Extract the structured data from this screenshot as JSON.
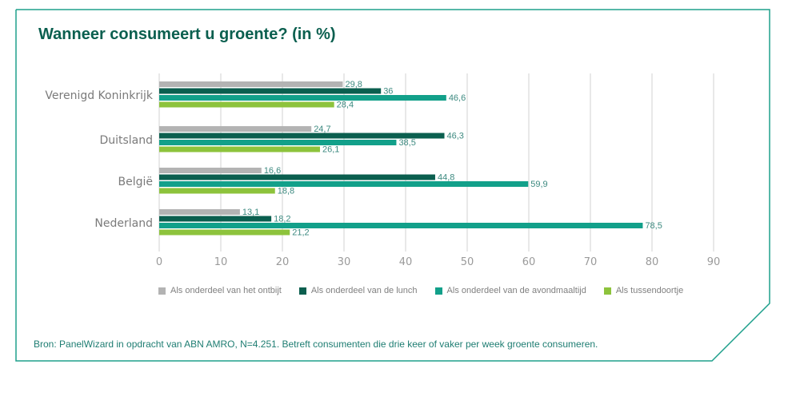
{
  "colors": {
    "border": "#1fa08c",
    "title": "#0b5f4f",
    "ontbijt": "#b3b3b3",
    "lunch": "#0b5f4f",
    "avondmaaltijd": "#12a08a",
    "tussendoortje": "#8dc33c"
  },
  "source_text": "Bron: PanelWizard in opdracht van ABN AMRO, N=4.251. Betreft consumenten die drie keer of vaker per week groente consumeren.",
  "chart_data": {
    "type": "bar",
    "orientation": "horizontal",
    "title": "Wanneer consumeert u groente? (in %)",
    "categories": [
      "Verenigd Koninkrijk",
      "Duitsland",
      "België",
      "Nederland"
    ],
    "series": [
      {
        "name": "Als onderdeel van het ontbijt",
        "values": [
          29.8,
          24.7,
          16.6,
          13.1
        ],
        "labels": [
          "29,8",
          "24,7",
          "16,6",
          "13,1"
        ],
        "color": "#b3b3b3"
      },
      {
        "name": "Als onderdeel van de lunch",
        "values": [
          36,
          46.3,
          44.8,
          18.2
        ],
        "labels": [
          "36",
          "46,3",
          "44,8",
          "18,2"
        ],
        "color": "#0b5f4f"
      },
      {
        "name": "Als onderdeel van de avondmaaltijd",
        "values": [
          46.6,
          38.5,
          59.9,
          78.5
        ],
        "labels": [
          "46,6",
          "38,5",
          "59,9",
          "78,5"
        ],
        "color": "#12a08a"
      },
      {
        "name": "Als tussendoortje",
        "values": [
          28.4,
          26.1,
          18.8,
          21.2
        ],
        "labels": [
          "28,4",
          "26,1",
          "18,8",
          "21,2"
        ],
        "color": "#8dc33c"
      }
    ],
    "xlim": [
      0,
      90
    ],
    "xticks": [
      "0",
      "10",
      "20",
      "30",
      "40",
      "50",
      "60",
      "70",
      "80",
      "90"
    ],
    "grid": true,
    "legend": "bottom"
  }
}
